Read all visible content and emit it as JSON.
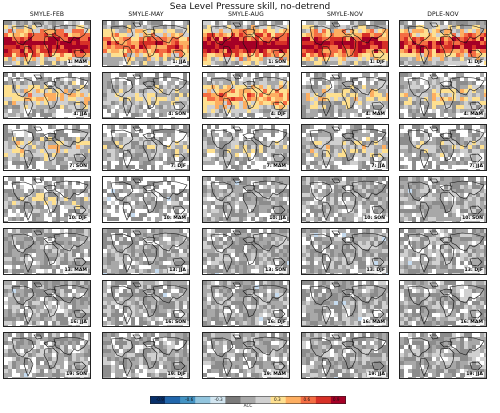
{
  "title": "Sea Level Pressure skill, no-detrend",
  "columns": [
    "SMYLE-FEB",
    "SMYLE-MAY",
    "SMYLE-AUG",
    "SMYLE-NOV",
    "DPLE-NOV"
  ],
  "panel_labels": [
    [
      "1: MAM",
      "1: JJA",
      "1: SON",
      "1: DJF",
      "1: DJF"
    ],
    [
      "4: JJA",
      "4: SON",
      "4: DJF",
      "4: MAM",
      "4: MAM"
    ],
    [
      "7: SON",
      "7: DJF",
      "7: MAM",
      "7: JJA",
      "7: JJA"
    ],
    [
      "10: DJF",
      "10: MAM",
      "10: JJA",
      "10: SON",
      "10: SON"
    ],
    [
      "13: MAM",
      "13: JJA",
      "13: SON",
      "13: DJF",
      "13: DJF"
    ],
    [
      "16: JJA",
      "16: SON",
      "16: DJF",
      "16: MAM",
      "16: MAM"
    ],
    [
      "19: SON",
      "19: DJF",
      "19: MAM",
      "19: JJA",
      "19: JJA"
    ]
  ],
  "panel_skill_level": [
    [
      0.9,
      0.7,
      0.9,
      0.85,
      0.8
    ],
    [
      0.45,
      0.35,
      0.6,
      0.4,
      0.4
    ],
    [
      0.4,
      0.3,
      0.3,
      0.35,
      0.3
    ],
    [
      0.3,
      0.2,
      0.15,
      0.15,
      0.1
    ],
    [
      0.15,
      0.1,
      0.1,
      0.15,
      0.1
    ],
    [
      0.1,
      0.1,
      0.1,
      0.1,
      0.1
    ],
    [
      0.1,
      0.1,
      0.1,
      0.1,
      0.1
    ]
  ],
  "colorbar": {
    "label": "ACC",
    "ticks": [
      "-0.9",
      "-0.6",
      "-0.3",
      "0.3",
      "0.6",
      "0.9"
    ],
    "colors": [
      "#08306b",
      "#2166ac",
      "#4393c3",
      "#92c5de",
      "#d1e5f0",
      "#7a7a7a",
      "#a8a8a8",
      "#d0d0d0",
      "#fee090",
      "#fdae61",
      "#f46d43",
      "#d73027",
      "#a50026"
    ]
  },
  "chart_data": {
    "type": "heatmap",
    "title": "Sea Level Pressure skill, no-detrend",
    "colorbar_label": "ACC",
    "colorbar_range": [
      -1.0,
      1.0
    ],
    "colorbar_ticks": [
      -0.9,
      -0.6,
      -0.3,
      0.3,
      0.6,
      0.9
    ],
    "columns": [
      "SMYLE-FEB",
      "SMYLE-MAY",
      "SMYLE-AUG",
      "SMYLE-NOV",
      "DPLE-NOV"
    ],
    "lead_months": [
      1,
      4,
      7,
      10,
      13,
      16,
      19
    ]
  }
}
